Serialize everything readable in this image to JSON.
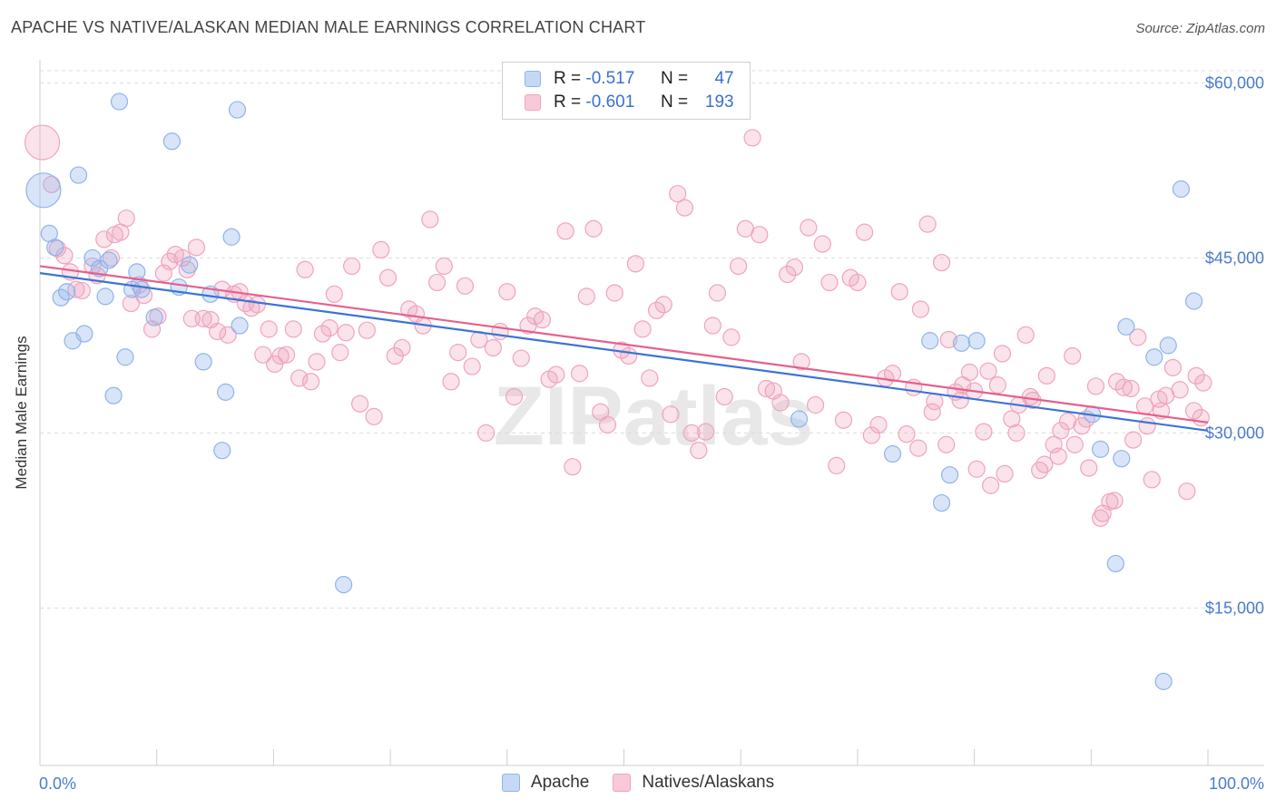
{
  "title": "APACHE VS NATIVE/ALASKAN MEDIAN MALE EARNINGS CORRELATION CHART",
  "source": "Source: ZipAtlas.com",
  "watermark": "ZIPatlas",
  "legend": {
    "rows": [
      {
        "r_label": "R =",
        "r_value": "-0.517",
        "n_label": "N =",
        "n_value": "47",
        "color": "#8fb4ea"
      },
      {
        "r_label": "R =",
        "r_value": "-0.601",
        "n_label": "N =",
        "n_value": "193",
        "color": "#f0a3bd"
      }
    ]
  },
  "bottom_legend": [
    {
      "label": "Apache",
      "color": "#8fb4ea"
    },
    {
      "label": "Natives/Alaskans",
      "color": "#f0a3bd"
    }
  ],
  "chart_data": {
    "type": "scatter",
    "ylabel": "Median Male Earnings",
    "xlabel": "",
    "x_tick_labels": [
      "0.0%",
      "100.0%"
    ],
    "y_tick_labels": [
      "$15,000",
      "$30,000",
      "$45,000",
      "$60,000"
    ],
    "y_ticks": [
      15000,
      30000,
      45000,
      60000
    ],
    "xlim": [
      0,
      100
    ],
    "ylim": [
      1500,
      64000
    ],
    "grid": "horizontal-dashed",
    "series": [
      {
        "name": "Apache",
        "color": "#8fb4ea",
        "line_color": "#3a75d4",
        "trend": {
          "x": [
            0,
            100
          ],
          "y": [
            43700,
            30200
          ]
        },
        "points": [
          [
            0.3,
            50800,
            "big"
          ],
          [
            0.8,
            47100
          ],
          [
            1.3,
            45900
          ],
          [
            3.3,
            52100
          ],
          [
            1.8,
            41600
          ],
          [
            2.3,
            42100
          ],
          [
            2.8,
            37900
          ],
          [
            3.8,
            38500
          ],
          [
            4.5,
            45000
          ],
          [
            5.1,
            44100
          ],
          [
            5.6,
            41700
          ],
          [
            5.9,
            44800
          ],
          [
            6.3,
            33200
          ],
          [
            6.8,
            58400
          ],
          [
            7.3,
            36500
          ],
          [
            7.9,
            42300
          ],
          [
            8.3,
            43800
          ],
          [
            8.7,
            42300
          ],
          [
            9.8,
            39900
          ],
          [
            11.3,
            55000
          ],
          [
            11.9,
            42500
          ],
          [
            12.8,
            44400
          ],
          [
            14.0,
            36100
          ],
          [
            14.6,
            41900
          ],
          [
            15.6,
            28500
          ],
          [
            15.9,
            33500
          ],
          [
            16.4,
            46800
          ],
          [
            16.9,
            57700
          ],
          [
            17.1,
            39200
          ],
          [
            26.0,
            17000
          ],
          [
            65.0,
            31200
          ],
          [
            73.0,
            28200
          ],
          [
            76.2,
            37900
          ],
          [
            77.2,
            24000
          ],
          [
            77.9,
            26400
          ],
          [
            78.9,
            37700
          ],
          [
            80.2,
            37900
          ],
          [
            90.1,
            31600
          ],
          [
            90.8,
            28600
          ],
          [
            92.6,
            27800
          ],
          [
            92.1,
            18800
          ],
          [
            93.0,
            39100
          ],
          [
            95.4,
            36500
          ],
          [
            96.6,
            37500
          ],
          [
            96.2,
            8700
          ],
          [
            97.7,
            50900
          ],
          [
            98.8,
            41300
          ]
        ]
      },
      {
        "name": "Natives/Alaskans",
        "color": "#f0a3bd",
        "line_color": "#e4608d",
        "trend": {
          "x": [
            0,
            100
          ],
          "y": [
            44300,
            30900
          ]
        },
        "points": [
          [
            0.2,
            54900,
            "big"
          ],
          [
            1.0,
            51300
          ],
          [
            1.5,
            45800
          ],
          [
            2.1,
            45200
          ],
          [
            2.6,
            43800
          ],
          [
            3.1,
            42300
          ],
          [
            3.6,
            42200
          ],
          [
            4.5,
            44300
          ],
          [
            4.9,
            43500
          ],
          [
            5.5,
            46600
          ],
          [
            6.1,
            45000
          ],
          [
            6.4,
            47000
          ],
          [
            6.9,
            47200
          ],
          [
            7.4,
            48400
          ],
          [
            7.8,
            41100
          ],
          [
            8.5,
            42700
          ],
          [
            8.9,
            41800
          ],
          [
            9.6,
            38900
          ],
          [
            10.1,
            40000
          ],
          [
            10.6,
            43700
          ],
          [
            11.1,
            44700
          ],
          [
            11.6,
            45300
          ],
          [
            12.2,
            45000
          ],
          [
            12.6,
            44000
          ],
          [
            13.0,
            39800
          ],
          [
            13.4,
            45900
          ],
          [
            14.0,
            39800
          ],
          [
            14.6,
            39700
          ],
          [
            15.2,
            38700
          ],
          [
            15.6,
            42300
          ],
          [
            16.1,
            38400
          ],
          [
            16.6,
            41900
          ],
          [
            17.1,
            42100
          ],
          [
            17.6,
            41100
          ],
          [
            18.1,
            40700
          ],
          [
            18.6,
            41000
          ],
          [
            19.1,
            36700
          ],
          [
            19.6,
            38900
          ],
          [
            20.1,
            35900
          ],
          [
            20.6,
            36600
          ],
          [
            21.1,
            36700
          ],
          [
            21.7,
            38900
          ],
          [
            22.2,
            34700
          ],
          [
            22.7,
            44000
          ],
          [
            23.2,
            34400
          ],
          [
            23.7,
            36100
          ],
          [
            24.2,
            38500
          ],
          [
            24.8,
            39000
          ],
          [
            25.2,
            41900
          ],
          [
            25.7,
            36900
          ],
          [
            26.2,
            38600
          ],
          [
            26.7,
            44300
          ],
          [
            27.4,
            32500
          ],
          [
            28.0,
            38800
          ],
          [
            28.6,
            31400
          ],
          [
            29.2,
            45700
          ],
          [
            29.8,
            43300
          ],
          [
            30.4,
            36600
          ],
          [
            31.0,
            37300
          ],
          [
            31.6,
            40600
          ],
          [
            32.2,
            40200
          ],
          [
            32.8,
            39200
          ],
          [
            33.4,
            48300
          ],
          [
            34.0,
            42900
          ],
          [
            34.6,
            44300
          ],
          [
            35.2,
            34400
          ],
          [
            35.8,
            36900
          ],
          [
            36.4,
            42600
          ],
          [
            37.0,
            35700
          ],
          [
            37.6,
            38000
          ],
          [
            38.2,
            30000
          ],
          [
            38.8,
            37300
          ],
          [
            39.4,
            38700
          ],
          [
            40.0,
            42100
          ],
          [
            40.6,
            33100
          ],
          [
            41.2,
            36400
          ],
          [
            41.8,
            39200
          ],
          [
            42.4,
            40000
          ],
          [
            43.0,
            39700
          ],
          [
            43.6,
            34600
          ],
          [
            44.2,
            35000
          ],
          [
            45.0,
            47300
          ],
          [
            45.6,
            27100
          ],
          [
            46.2,
            35100
          ],
          [
            46.8,
            41700
          ],
          [
            47.4,
            47500
          ],
          [
            48.0,
            31800
          ],
          [
            48.6,
            30700
          ],
          [
            49.2,
            42000
          ],
          [
            49.8,
            37100
          ],
          [
            50.4,
            36600
          ],
          [
            51.0,
            44500
          ],
          [
            51.6,
            38900
          ],
          [
            52.2,
            34700
          ],
          [
            52.8,
            40500
          ],
          [
            53.4,
            41000
          ],
          [
            54.0,
            31600
          ],
          [
            54.6,
            50500
          ],
          [
            55.2,
            49300
          ],
          [
            55.8,
            30000
          ],
          [
            56.4,
            28500
          ],
          [
            57.0,
            30100
          ],
          [
            57.6,
            39200
          ],
          [
            58.0,
            42000
          ],
          [
            58.6,
            33100
          ],
          [
            59.2,
            38200
          ],
          [
            59.8,
            44300
          ],
          [
            60.4,
            47500
          ],
          [
            61.0,
            55300
          ],
          [
            61.6,
            47000
          ],
          [
            62.2,
            33800
          ],
          [
            62.8,
            33600
          ],
          [
            63.4,
            32600
          ],
          [
            64.0,
            43600
          ],
          [
            64.6,
            44200
          ],
          [
            65.2,
            36100
          ],
          [
            65.8,
            47600
          ],
          [
            66.4,
            32400
          ],
          [
            67.0,
            46200
          ],
          [
            67.6,
            42900
          ],
          [
            68.2,
            27200
          ],
          [
            68.8,
            31100
          ],
          [
            69.4,
            43300
          ],
          [
            70.0,
            42900
          ],
          [
            70.6,
            47200
          ],
          [
            71.2,
            29800
          ],
          [
            71.8,
            30700
          ],
          [
            72.4,
            34700
          ],
          [
            73.0,
            35100
          ],
          [
            73.6,
            42100
          ],
          [
            74.2,
            29900
          ],
          [
            74.8,
            33900
          ],
          [
            75.4,
            40600
          ],
          [
            76.0,
            47900
          ],
          [
            76.6,
            32700
          ],
          [
            77.2,
            44600
          ],
          [
            77.8,
            38000
          ],
          [
            78.4,
            33500
          ],
          [
            79.0,
            34100
          ],
          [
            79.6,
            35200
          ],
          [
            80.2,
            26900
          ],
          [
            80.8,
            30100
          ],
          [
            81.4,
            25500
          ],
          [
            82.0,
            34100
          ],
          [
            82.6,
            26500
          ],
          [
            83.2,
            31200
          ],
          [
            83.8,
            32400
          ],
          [
            84.4,
            38400
          ],
          [
            85.0,
            32800
          ],
          [
            85.6,
            26800
          ],
          [
            86.2,
            34900
          ],
          [
            86.8,
            29000
          ],
          [
            87.4,
            30200
          ],
          [
            88.0,
            31000
          ],
          [
            88.6,
            29000
          ],
          [
            89.2,
            30600
          ],
          [
            89.8,
            27000
          ],
          [
            90.4,
            34000
          ],
          [
            91.0,
            23100
          ],
          [
            91.6,
            24100
          ],
          [
            92.2,
            34400
          ],
          [
            92.8,
            33900
          ],
          [
            93.4,
            33800
          ],
          [
            94.0,
            38200
          ],
          [
            94.6,
            32300
          ],
          [
            95.2,
            26000
          ],
          [
            95.8,
            32900
          ],
          [
            96.4,
            33200
          ],
          [
            97.0,
            35600
          ],
          [
            97.6,
            33700
          ],
          [
            98.2,
            25000
          ],
          [
            98.8,
            31900
          ],
          [
            99.4,
            31300
          ],
          [
            99.0,
            34900
          ],
          [
            99.6,
            34300
          ],
          [
            96.0,
            31900
          ],
          [
            94.8,
            30600
          ],
          [
            93.6,
            29400
          ],
          [
            92.0,
            24200
          ],
          [
            90.8,
            22700
          ],
          [
            89.6,
            31200
          ],
          [
            88.4,
            36600
          ],
          [
            87.2,
            28000
          ],
          [
            86.0,
            27300
          ],
          [
            84.8,
            33100
          ],
          [
            83.6,
            30000
          ],
          [
            82.4,
            36800
          ],
          [
            81.2,
            35300
          ],
          [
            80.0,
            33600
          ],
          [
            78.8,
            32800
          ],
          [
            77.6,
            29000
          ],
          [
            76.4,
            31800
          ],
          [
            75.2,
            28700
          ]
        ]
      }
    ]
  }
}
